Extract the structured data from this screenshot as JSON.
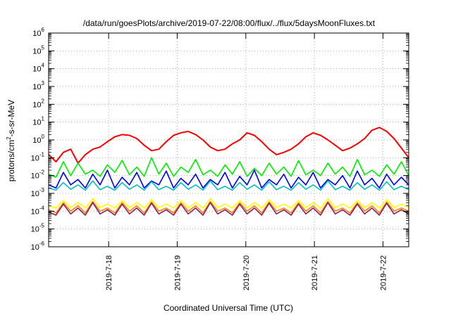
{
  "chart_data": {
    "type": "line",
    "title": "/data/run/goesPlots/archive/2019-07-22/08:00/flux/../flux/5daysMoonFluxes.txt",
    "xlabel": "Coordinated Universal Time (UTC)",
    "ylabel": {
      "prefix": "protons/cm",
      "sup": "2",
      "suffix": "-s-sr-MeV"
    },
    "yscale": "log",
    "ylim": [
      1e-06,
      1000000.0
    ],
    "y_ticks": [
      {
        "base": "10",
        "exp": "-6"
      },
      {
        "base": "10",
        "exp": "-5"
      },
      {
        "base": "10",
        "exp": "-4"
      },
      {
        "base": "10",
        "exp": "-3"
      },
      {
        "base": "10",
        "exp": "-2"
      },
      {
        "base": "10",
        "exp": "-1"
      },
      {
        "base": "10",
        "exp": "0"
      },
      {
        "base": "10",
        "exp": "1"
      },
      {
        "base": "10",
        "exp": "2"
      },
      {
        "base": "10",
        "exp": "3"
      },
      {
        "base": "10",
        "exp": "4"
      },
      {
        "base": "10",
        "exp": "5"
      },
      {
        "base": "10",
        "exp": "6"
      }
    ],
    "xlim": [
      "2019-07-17 03:00",
      "2019-07-22 09:00"
    ],
    "x_ticks": [
      "2019-7-18",
      "2019-7-19",
      "2019-7-20",
      "2019-7-21",
      "2019-7-22"
    ],
    "grid": true,
    "legend": "none",
    "series": [
      {
        "color": "#ff0000",
        "values": [
          0.15,
          0.06,
          0.2,
          0.3,
          0.05,
          0.15,
          0.3,
          0.4,
          0.8,
          1.5,
          2.0,
          1.8,
          1.2,
          0.5,
          0.25,
          0.3,
          0.8,
          1.8,
          2.5,
          3.0,
          2.0,
          1.0,
          0.4,
          0.25,
          0.3,
          0.6,
          1.0,
          2.5,
          1.8,
          0.8,
          0.3,
          0.15,
          0.2,
          0.3,
          0.6,
          1.5,
          2.5,
          1.8,
          1.0,
          0.5,
          0.25,
          0.35,
          0.6,
          1.2,
          3.5,
          5.0,
          3.0,
          1.2,
          0.35,
          0.1
        ]
      },
      {
        "color": "#00ee00",
        "values": [
          0.012,
          0.008,
          0.06,
          0.01,
          0.05,
          0.012,
          0.02,
          0.009,
          0.04,
          0.015,
          0.07,
          0.011,
          0.03,
          0.009,
          0.1,
          0.012,
          0.05,
          0.009,
          0.03,
          0.015,
          0.08,
          0.011,
          0.02,
          0.009,
          0.04,
          0.012,
          0.06,
          0.009,
          0.025,
          0.01,
          0.05,
          0.012,
          0.03,
          0.009,
          0.07,
          0.011,
          0.02,
          0.01,
          0.05,
          0.012,
          0.03,
          0.009,
          0.08,
          0.011,
          0.02,
          0.009,
          0.04,
          0.012,
          0.06,
          0.01
        ]
      },
      {
        "color": "#0000ee",
        "values": [
          0.003,
          0.002,
          0.015,
          0.003,
          0.006,
          0.002,
          0.012,
          0.003,
          0.02,
          0.002,
          0.008,
          0.003,
          0.015,
          0.002,
          0.005,
          0.003,
          0.018,
          0.002,
          0.007,
          0.003,
          0.012,
          0.002,
          0.006,
          0.003,
          0.015,
          0.002,
          0.009,
          0.003,
          0.02,
          0.002,
          0.006,
          0.003,
          0.012,
          0.002,
          0.008,
          0.003,
          0.015,
          0.002,
          0.006,
          0.003,
          0.01,
          0.002,
          0.018,
          0.003,
          0.007,
          0.002,
          0.012,
          0.003,
          0.008,
          0.003
        ]
      },
      {
        "color": "#00c0c0",
        "values": [
          0.002,
          0.0015,
          0.004,
          0.0017,
          0.003,
          0.0015,
          0.005,
          0.0016,
          0.0025,
          0.0015,
          0.004,
          0.0017,
          0.003,
          0.0015,
          0.0045,
          0.0016,
          0.0025,
          0.0015,
          0.004,
          0.0017,
          0.003,
          0.0015,
          0.005,
          0.0016,
          0.0025,
          0.0015,
          0.004,
          0.0017,
          0.003,
          0.0015,
          0.0045,
          0.0016,
          0.0025,
          0.0015,
          0.004,
          0.0017,
          0.003,
          0.0015,
          0.005,
          0.0016,
          0.0025,
          0.0015,
          0.004,
          0.0017,
          0.003,
          0.0015,
          0.0045,
          0.0016,
          0.0025,
          0.0016
        ]
      },
      {
        "color": "#ffff00",
        "values": [
          0.0002,
          0.00015,
          0.0004,
          0.00016,
          0.0003,
          0.00015,
          0.0005,
          0.00016,
          0.00025,
          0.00015,
          0.0004,
          0.00016,
          0.0003,
          0.00015,
          0.00045,
          0.00016,
          0.00025,
          0.00015,
          0.0004,
          0.00016,
          0.0003,
          0.00015,
          0.0005,
          0.00016,
          0.00025,
          0.00015,
          0.0004,
          0.00016,
          0.0003,
          0.00015,
          0.00045,
          0.00016,
          0.00025,
          0.00015,
          0.0004,
          0.00016,
          0.0003,
          0.00015,
          0.0005,
          0.00016,
          0.00025,
          0.00015,
          0.0004,
          0.00016,
          0.0003,
          0.00015,
          0.00045,
          0.00016,
          0.00025,
          0.00016
        ]
      },
      {
        "color": "#ff8000",
        "values": [
          0.00012,
          8e-05,
          0.0003,
          0.0001,
          0.0002,
          8e-05,
          0.00035,
          0.0001,
          0.00015,
          8e-05,
          0.0003,
          0.0001,
          0.0002,
          8e-05,
          0.00033,
          0.0001,
          0.00015,
          8e-05,
          0.0003,
          0.0001,
          0.0002,
          8e-05,
          0.00035,
          0.0001,
          0.00015,
          8e-05,
          0.0003,
          0.0001,
          0.0002,
          8e-05,
          0.00033,
          0.0001,
          0.00015,
          8e-05,
          0.0003,
          0.0001,
          0.0002,
          8e-05,
          0.00035,
          0.0001,
          0.00015,
          8e-05,
          0.0003,
          0.0001,
          0.0002,
          8e-05,
          0.00033,
          0.0001,
          0.00015,
          0.0001
        ]
      },
      {
        "color": "#8b1c62",
        "values": [
          9e-05,
          6e-05,
          0.00025,
          7e-05,
          0.00015,
          6e-05,
          0.0003,
          7e-05,
          0.00012,
          6e-05,
          0.00025,
          7e-05,
          0.00015,
          6e-05,
          0.00028,
          7e-05,
          0.00012,
          6e-05,
          0.00025,
          7e-05,
          0.00015,
          6e-05,
          0.0003,
          7e-05,
          0.00012,
          6e-05,
          0.00025,
          7e-05,
          0.00015,
          6e-05,
          0.00028,
          7e-05,
          0.00012,
          6e-05,
          0.00025,
          7e-05,
          0.00015,
          6e-05,
          0.0003,
          7e-05,
          0.00012,
          6e-05,
          0.00025,
          7e-05,
          0.00015,
          6e-05,
          0.00028,
          7e-05,
          0.00012,
          7e-05
        ]
      }
    ]
  }
}
